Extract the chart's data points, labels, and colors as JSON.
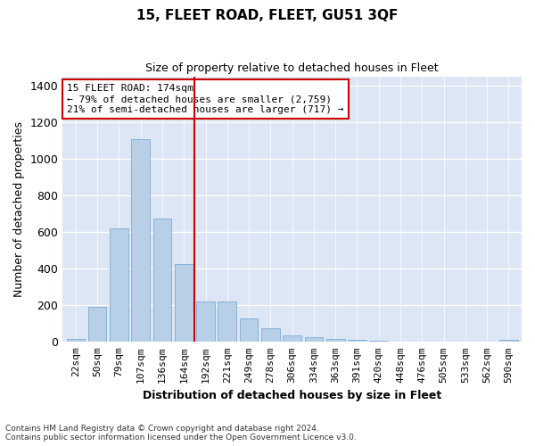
{
  "title": "15, FLEET ROAD, FLEET, GU51 3QF",
  "subtitle": "Size of property relative to detached houses in Fleet",
  "xlabel": "Distribution of detached houses by size in Fleet",
  "ylabel": "Number of detached properties",
  "footer_line1": "Contains HM Land Registry data © Crown copyright and database right 2024.",
  "footer_line2": "Contains public sector information licensed under the Open Government Licence v3.0.",
  "annotation_line1": "15 FLEET ROAD: 174sqm",
  "annotation_line2": "← 79% of detached houses are smaller (2,759)",
  "annotation_line3": "21% of semi-detached houses are larger (717) →",
  "bar_color": "#b8cfe8",
  "bar_edge_color": "#7aadd4",
  "vline_color": "#cc0000",
  "annotation_box_edge_color": "#cc0000",
  "categories": [
    "22sqm",
    "50sqm",
    "79sqm",
    "107sqm",
    "136sqm",
    "164sqm",
    "192sqm",
    "221sqm",
    "249sqm",
    "278sqm",
    "306sqm",
    "334sqm",
    "363sqm",
    "391sqm",
    "420sqm",
    "448sqm",
    "476sqm",
    "505sqm",
    "533sqm",
    "562sqm",
    "590sqm"
  ],
  "values": [
    18,
    190,
    620,
    1105,
    675,
    425,
    220,
    220,
    130,
    75,
    35,
    28,
    15,
    10,
    5,
    0,
    0,
    0,
    0,
    0,
    12
  ],
  "ylim": [
    0,
    1450
  ],
  "yticks": [
    0,
    200,
    400,
    600,
    800,
    1000,
    1200,
    1400
  ],
  "fig_background": "#ffffff",
  "plot_background": "#dce6f5",
  "grid_color": "#ffffff",
  "vline_index": 5.5
}
